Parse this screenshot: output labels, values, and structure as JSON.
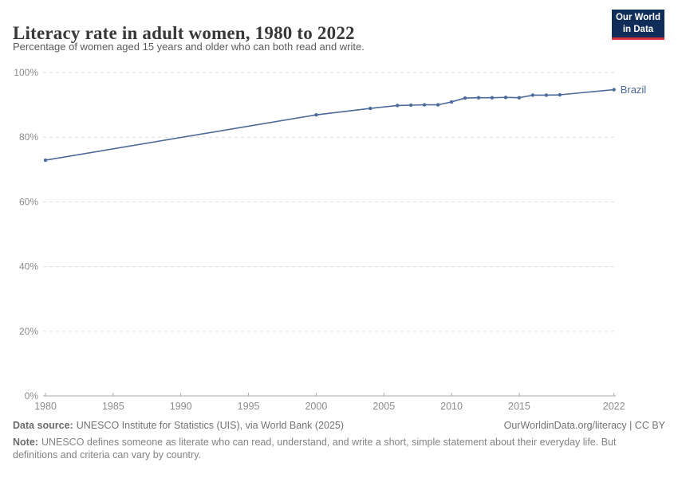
{
  "header": {
    "title": "Literacy rate in adult women, 1980 to 2022",
    "subtitle": "Percentage of women aged 15 years and older who can both read and write.",
    "logo": {
      "line1": "Our World",
      "line2": "in Data"
    }
  },
  "colors": {
    "logo_navy": "#102D59",
    "logo_red": "#D7333F",
    "series_blue": "#4C6A9C",
    "gridline": "#DDDDDD",
    "axis": "#A8A8A8",
    "tick_label": "#8B8B8B"
  },
  "chart_data": {
    "type": "line",
    "title": "Literacy rate in adult women, 1980 to 2022",
    "xlabel": "",
    "ylabel": "",
    "xlim": [
      1980,
      2022
    ],
    "ylim": [
      0,
      100
    ],
    "grid": "horizontal-dashed",
    "legend_position": "end-of-line-label",
    "x_ticks": [
      1980,
      1985,
      1990,
      1995,
      2000,
      2005,
      2010,
      2015,
      2022
    ],
    "y_ticks": [
      0,
      20,
      40,
      60,
      80,
      100
    ],
    "y_tick_suffix": "%",
    "series": [
      {
        "name": "Brazil",
        "color": "#4C6A9C",
        "x": [
          1980,
          2000,
          2004,
          2006,
          2007,
          2008,
          2009,
          2010,
          2011,
          2012,
          2013,
          2014,
          2015,
          2016,
          2017,
          2018,
          2022
        ],
        "values": [
          72.9,
          86.9,
          88.9,
          89.8,
          89.9,
          90.0,
          90.0,
          90.9,
          92.1,
          92.2,
          92.2,
          92.3,
          92.2,
          93.0,
          93.0,
          93.1,
          94.7
        ]
      }
    ]
  },
  "footer": {
    "datasource_label": "Data source:",
    "datasource_text": "UNESCO Institute for Statistics (UIS), via World Bank (2025)",
    "attribution": "OurWorldinData.org/literacy | CC BY",
    "note_label": "Note:",
    "note_text": "UNESCO defines someone as literate who can read, understand, and write a short, simple statement about their everyday life. But definitions and criteria can vary by country."
  }
}
